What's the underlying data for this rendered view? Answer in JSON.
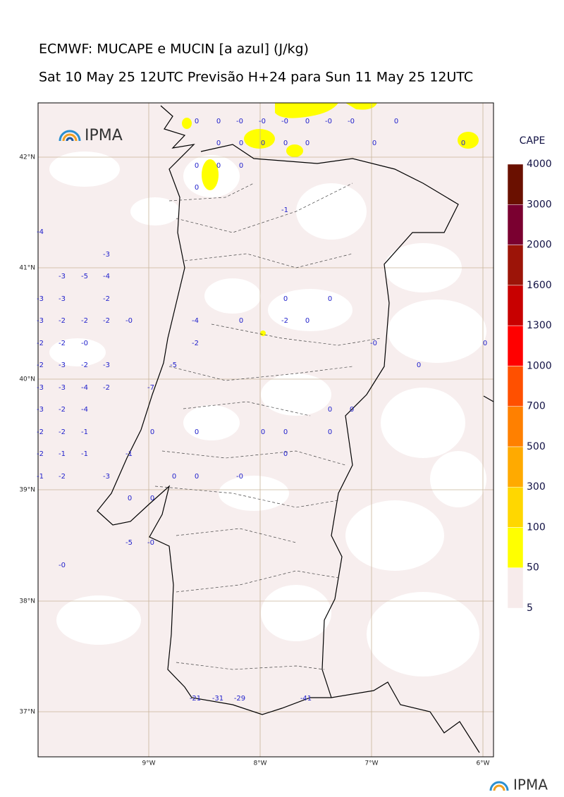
{
  "title": "ECMWF: MUCAPE e MUCIN [a azul] (J/kg)",
  "subtitle": "Sat 10 May 25 12UTC Previsão H+24 para Sun 11 May 25 12UTC",
  "logo": "IPMA",
  "footer_logo": "IPMA",
  "colorbar": {
    "title": "CAPE",
    "levels": [
      5,
      50,
      100,
      300,
      500,
      700,
      1000,
      1300,
      1600,
      2000,
      3000,
      4000
    ],
    "colors": [
      "#f7ebeb",
      "#ffff00",
      "#ffd700",
      "#ffaa00",
      "#ff8000",
      "#ff5000",
      "#ff0000",
      "#c80000",
      "#9c1408",
      "#7a0030",
      "#6a1000"
    ]
  },
  "map": {
    "lat_labels": [
      "42°N",
      "41°N",
      "40°N",
      "39°N",
      "38°N",
      "37°N"
    ],
    "lon_labels": [
      "9°W",
      "8°W",
      "7°W",
      "6°W"
    ],
    "cin_labels": [
      "0",
      "0",
      "-0",
      "-0",
      "-0",
      "0",
      "-0",
      "-0",
      "0",
      "0",
      "0",
      "0",
      "0",
      "0",
      "0",
      "0",
      "0",
      "0",
      "0",
      "0",
      "-1",
      "-4",
      "-3",
      "-3",
      "-5",
      "-4",
      "-3",
      "-3",
      "-2",
      "0",
      "0",
      "-3",
      "-2",
      "-2",
      "-2",
      "-0",
      "-4",
      "0",
      "-2",
      "0",
      "-2",
      "-2",
      "-0",
      "-2",
      "-0",
      "0",
      "-2",
      "-3",
      "-2",
      "-3",
      "-5",
      "0",
      "-3",
      "-3",
      "-4",
      "-2",
      "-7",
      "-3",
      "-2",
      "-4",
      "0",
      "0",
      "-2",
      "-2",
      "-1",
      "0",
      "0",
      "0",
      "0",
      "0",
      "-2",
      "-1",
      "-1",
      "-1",
      "0",
      "-1",
      "-2",
      "-3",
      "0",
      "0",
      "-0",
      "0",
      "0",
      "-5",
      "-0",
      "-0",
      "-21",
      "-31",
      "-29",
      "-41"
    ]
  }
}
